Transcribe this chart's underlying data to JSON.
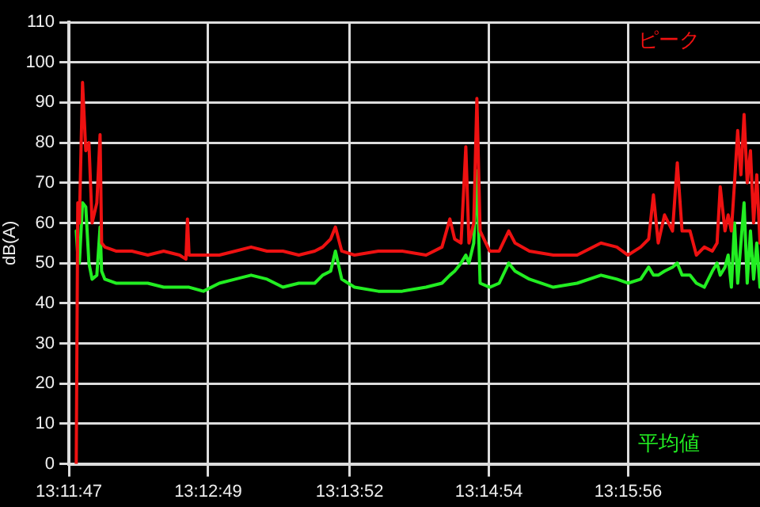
{
  "chart_data": {
    "type": "line",
    "ylabel": "dB(A)",
    "x": [
      13.19729,
      13.19748,
      13.19768,
      13.19807,
      13.19847,
      13.19886,
      13.19925,
      13.19984,
      13.20024,
      13.20043,
      13.20083,
      13.2022,
      13.20417,
      13.20614,
      13.2081,
      13.21007,
      13.21086,
      13.21105,
      13.21125,
      13.21302,
      13.21499,
      13.21696,
      13.21892,
      13.22089,
      13.22286,
      13.22482,
      13.22679,
      13.22777,
      13.22876,
      13.22935,
      13.23013,
      13.23171,
      13.23466,
      13.23761,
      13.24056,
      13.24253,
      13.24351,
      13.2441,
      13.24489,
      13.24548,
      13.24587,
      13.24646,
      13.24685,
      13.24725,
      13.24843,
      13.24961,
      13.25079,
      13.25157,
      13.25335,
      13.2563,
      13.25925,
      13.2622,
      13.26416,
      13.26554,
      13.26711,
      13.2681,
      13.26869,
      13.26928,
      13.27006,
      13.27105,
      13.27164,
      13.27223,
      13.27321,
      13.274,
      13.27498,
      13.27597,
      13.27656,
      13.27695,
      13.27754,
      13.27793,
      13.27833,
      13.27872,
      13.27911,
      13.27951,
      13.2799,
      13.28029,
      13.28069,
      13.28108,
      13.28147,
      13.28187
    ],
    "series": [
      {
        "name": "ピーク",
        "color": "#ee1111",
        "values": [
          0,
          65,
          60,
          95,
          78,
          80,
          60,
          65,
          82,
          55,
          54,
          53,
          53,
          52,
          53,
          52,
          51,
          61,
          52,
          52,
          52,
          53,
          54,
          53,
          53,
          52,
          53,
          54,
          56,
          59,
          53,
          52,
          53,
          53,
          52,
          54,
          61,
          56,
          55,
          79,
          55,
          60,
          91,
          58,
          53,
          53,
          58,
          55,
          53,
          52,
          52,
          55,
          54,
          52,
          54,
          56,
          67,
          55,
          62,
          58,
          75,
          58,
          58,
          52,
          54,
          53,
          55,
          69,
          58,
          62,
          58,
          70,
          83,
          72,
          87,
          70,
          78,
          60,
          72,
          55
        ]
      },
      {
        "name": "平均値",
        "color": "#22ee22",
        "values": [
          58,
          52,
          50,
          65,
          64,
          50,
          46,
          47,
          59,
          48,
          46,
          45,
          45,
          45,
          44,
          44,
          44,
          44,
          44,
          43,
          45,
          46,
          47,
          46,
          44,
          45,
          45,
          47,
          48,
          53,
          46,
          44,
          43,
          43,
          44,
          45,
          47,
          48,
          50,
          52,
          50,
          55,
          73,
          45,
          44,
          45,
          50,
          48,
          46,
          44,
          45,
          47,
          46,
          45,
          46,
          49,
          47,
          47,
          48,
          49,
          50,
          47,
          47,
          45,
          44,
          48,
          50,
          47,
          49,
          52,
          44,
          60,
          45,
          55,
          65,
          45,
          58,
          46,
          55,
          44
        ]
      }
    ],
    "xlim": [
      13.19639,
      13.28187
    ],
    "xticks": [
      {
        "value": 13.19639,
        "label": "13:11:47"
      },
      {
        "value": 13.21361,
        "label": "13:12:49"
      },
      {
        "value": 13.23111,
        "label": "13:13:52"
      },
      {
        "value": 13.24833,
        "label": "13:14:54"
      },
      {
        "value": 13.26556,
        "label": "13:15:56"
      }
    ],
    "ylim": [
      0,
      110
    ],
    "yticks": [
      0,
      10,
      20,
      30,
      40,
      50,
      60,
      70,
      80,
      90,
      100,
      110
    ],
    "grid": true,
    "marker": "none",
    "line_style": "solid"
  }
}
